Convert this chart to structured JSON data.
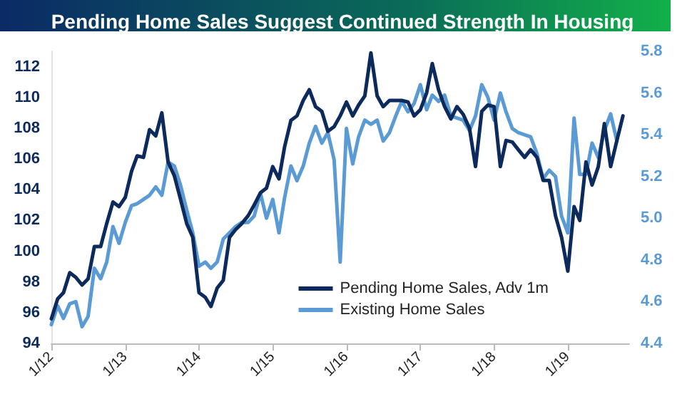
{
  "chart_data": {
    "type": "line",
    "title": "Pending Home Sales Suggest Continued Strength In Housing",
    "x": [
      "2012-01",
      "2012-02",
      "2012-03",
      "2012-04",
      "2012-05",
      "2012-06",
      "2012-07",
      "2012-08",
      "2012-09",
      "2012-10",
      "2012-11",
      "2012-12",
      "2013-01",
      "2013-02",
      "2013-03",
      "2013-04",
      "2013-05",
      "2013-06",
      "2013-07",
      "2013-08",
      "2013-09",
      "2013-10",
      "2013-11",
      "2013-12",
      "2014-01",
      "2014-02",
      "2014-03",
      "2014-04",
      "2014-05",
      "2014-06",
      "2014-07",
      "2014-08",
      "2014-09",
      "2014-10",
      "2014-11",
      "2014-12",
      "2015-01",
      "2015-02",
      "2015-03",
      "2015-04",
      "2015-05",
      "2015-06",
      "2015-07",
      "2015-08",
      "2015-09",
      "2015-10",
      "2015-11",
      "2015-12",
      "2016-01",
      "2016-02",
      "2016-03",
      "2016-04",
      "2016-05",
      "2016-06",
      "2016-07",
      "2016-08",
      "2016-09",
      "2016-10",
      "2016-11",
      "2016-12",
      "2017-01",
      "2017-02",
      "2017-03",
      "2017-04",
      "2017-05",
      "2017-06",
      "2017-07",
      "2017-08",
      "2017-09",
      "2017-10",
      "2017-11",
      "2017-12",
      "2018-01",
      "2018-02",
      "2018-03",
      "2018-04",
      "2018-05",
      "2018-06",
      "2018-07",
      "2018-08",
      "2018-09",
      "2018-10",
      "2018-11",
      "2018-12",
      "2019-01",
      "2019-02",
      "2019-03",
      "2019-04",
      "2019-05",
      "2019-06",
      "2019-07",
      "2019-08",
      "2019-09",
      "2019-10"
    ],
    "series": [
      {
        "name": "Pending Home Sales, Adv 1m",
        "color": "#0d2a5c",
        "values": [
          95.6,
          96.9,
          97.3,
          98.6,
          98.3,
          97.8,
          98.2,
          100.3,
          100.3,
          101.8,
          103.2,
          102.9,
          103.5,
          105.2,
          106.2,
          106.1,
          107.9,
          107.5,
          109.0,
          105.8,
          104.9,
          103.4,
          101.8,
          100.9,
          97.3,
          97.0,
          96.4,
          97.6,
          98.1,
          100.9,
          101.4,
          101.8,
          102.3,
          103.0,
          103.8,
          104.1,
          105.5,
          104.7,
          106.8,
          108.5,
          108.8,
          109.8,
          110.5,
          109.4,
          109.1,
          107.8,
          108.1,
          108.8,
          109.7,
          108.8,
          109.5,
          110.1,
          112.9,
          110.1,
          109.4,
          109.8,
          109.8,
          109.8,
          109.7,
          108.8,
          109.2,
          110.3,
          112.2,
          110.5,
          109.4,
          108.6,
          109.4,
          108.9,
          108.0,
          105.5,
          109.1,
          109.5,
          109.4,
          105.5,
          107.2,
          107.1,
          106.6,
          106.1,
          106.6,
          106.1,
          104.6,
          104.6,
          102.3,
          100.9,
          98.7,
          102.9,
          102.0,
          105.8,
          104.3,
          105.5,
          108.3,
          105.5,
          107.2,
          108.8
        ]
      },
      {
        "name": "Existing Home Sales",
        "color": "#5b9bd5",
        "axis": "y2",
        "values": [
          4.49,
          4.58,
          4.52,
          4.59,
          4.6,
          4.48,
          4.53,
          4.76,
          4.71,
          4.79,
          4.96,
          4.88,
          4.98,
          5.06,
          5.07,
          5.09,
          5.11,
          5.15,
          5.11,
          5.27,
          5.25,
          5.16,
          5.04,
          4.93,
          4.77,
          4.79,
          4.76,
          4.79,
          4.9,
          4.93,
          4.96,
          4.98,
          4.98,
          5.01,
          5.12,
          5.0,
          5.09,
          4.93,
          5.1,
          5.25,
          5.18,
          5.25,
          5.36,
          5.44,
          5.36,
          5.41,
          5.28,
          4.79,
          5.43,
          5.26,
          5.39,
          5.47,
          5.45,
          5.47,
          5.37,
          5.41,
          5.49,
          5.56,
          5.51,
          5.55,
          5.64,
          5.52,
          5.59,
          5.56,
          5.59,
          5.49,
          5.48,
          5.47,
          5.42,
          5.49,
          5.64,
          5.58,
          5.47,
          5.6,
          5.51,
          5.43,
          5.41,
          5.4,
          5.39,
          5.31,
          5.19,
          5.23,
          5.2,
          5.01,
          4.93,
          5.48,
          5.21,
          5.21,
          5.36,
          5.29,
          5.42,
          5.5,
          5.37,
          null
        ]
      }
    ],
    "xlim": [
      "2012-01",
      "2019-11"
    ],
    "xticks": [
      {
        "value": "2012-01",
        "label": "1/12"
      },
      {
        "value": "2013-01",
        "label": "1/13"
      },
      {
        "value": "2014-01",
        "label": "1/14"
      },
      {
        "value": "2015-01",
        "label": "1/15"
      },
      {
        "value": "2016-01",
        "label": "1/16"
      },
      {
        "value": "2017-01",
        "label": "1/17"
      },
      {
        "value": "2018-01",
        "label": "1/18"
      },
      {
        "value": "2019-01",
        "label": "1/19"
      }
    ],
    "ylim": [
      94,
      113
    ],
    "yticks": [
      94,
      96,
      98,
      100,
      102,
      104,
      106,
      108,
      110,
      112
    ],
    "y2lim": [
      4.4,
      5.8
    ],
    "y2ticks": [
      4.4,
      4.6,
      4.8,
      {
        "value": 5.0,
        "label": "5.0"
      },
      5.2,
      5.4,
      5.6,
      5.8
    ],
    "grid": false,
    "legend": "bottom right",
    "marker": "none",
    "line_style": "solid"
  }
}
